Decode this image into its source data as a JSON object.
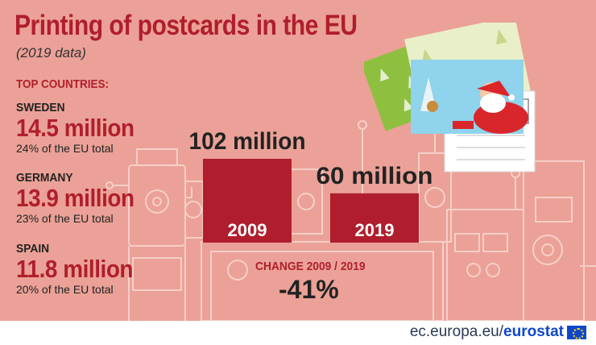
{
  "header": {
    "title": "Printing of postcards in the EU",
    "subtitle": "(2019 data)"
  },
  "top_countries": {
    "label": "TOP COUNTRIES:",
    "items": [
      {
        "name": "SWEDEN",
        "value": "14.5 million",
        "share": "24% of the EU total"
      },
      {
        "name": "GERMANY",
        "value": "13.9 million",
        "share": "23% of the EU total"
      },
      {
        "name": "SPAIN",
        "value": "11.8 million",
        "share": "20% of the EU total"
      }
    ]
  },
  "chart_data": {
    "type": "bar",
    "categories": [
      "2009",
      "2019"
    ],
    "values": [
      102,
      60
    ],
    "value_labels": [
      "102 million",
      "60 million"
    ],
    "unit": "million",
    "color": "#b01e2d",
    "title": "",
    "xlabel": "",
    "ylabel": "",
    "grid": false,
    "ylim": [
      0,
      102
    ]
  },
  "change": {
    "label": "CHANGE 2009 / 2019",
    "value": "-41%"
  },
  "footer": {
    "site": "ec.europa.eu/",
    "brand": "eurostat"
  },
  "colors": {
    "background": "#eba197",
    "accent": "#b01e2d",
    "text": "#222222",
    "footer_brand": "#0e47cb"
  }
}
